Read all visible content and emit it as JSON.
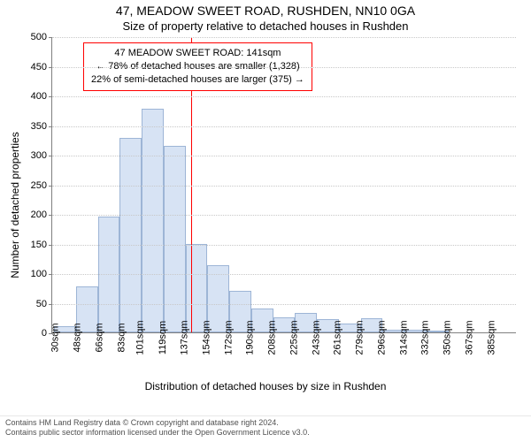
{
  "titles": {
    "main": "47, MEADOW SWEET ROAD, RUSHDEN, NN10 0GA",
    "sub": "Size of property relative to detached houses in Rushden"
  },
  "chart": {
    "type": "histogram",
    "x_categories": [
      "30sqm",
      "48sqm",
      "66sqm",
      "83sqm",
      "101sqm",
      "119sqm",
      "137sqm",
      "154sqm",
      "172sqm",
      "190sqm",
      "208sqm",
      "225sqm",
      "243sqm",
      "261sqm",
      "279sqm",
      "296sqm",
      "314sqm",
      "332sqm",
      "350sqm",
      "367sqm",
      "385sqm"
    ],
    "values": [
      11,
      77,
      195,
      328,
      378,
      315,
      150,
      113,
      70,
      40,
      25,
      33,
      22,
      15,
      24,
      4,
      4,
      3,
      0,
      0,
      0
    ],
    "bar_fill": "#d7e3f4",
    "bar_border": "#9db5d6",
    "y": {
      "min": 0,
      "max": 500,
      "step": 50,
      "label": "Number of detached properties"
    },
    "x_label": "Distribution of detached houses by size in Rushden",
    "grid_color": "#c8c8c8",
    "axis_color": "#808080",
    "background_color": "#ffffff",
    "title_fontsize": 14,
    "label_fontsize": 12,
    "tick_fontsize": 11,
    "reference": {
      "color": "#ff0000",
      "x_value_sqm": 141,
      "x_range_min": 30,
      "x_range_max": 385
    },
    "annotation": {
      "border_color": "#ff0000",
      "lines": [
        "47 MEADOW SWEET ROAD: 141sqm",
        "← 78% of detached houses are smaller (1,328)",
        "22% of semi-detached houses are larger (375) →"
      ]
    }
  },
  "footer": {
    "line1": "Contains HM Land Registry data © Crown copyright and database right 2024.",
    "line2": "Contains public sector information licensed under the Open Government Licence v3.0."
  }
}
